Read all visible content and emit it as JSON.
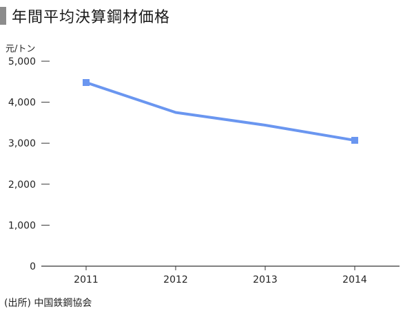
{
  "chart_data": {
    "type": "line",
    "title": "年間平均決算鋼材価格",
    "ylabel": "元/トン",
    "xlabel": "",
    "categories": [
      "2011",
      "2012",
      "2013",
      "2014"
    ],
    "series": [
      {
        "values": [
          4480,
          3750,
          3440,
          3070
        ],
        "color": "#6a96f0"
      }
    ],
    "ylim": [
      0,
      5000
    ],
    "yticks": [
      0,
      1000,
      2000,
      3000,
      4000,
      5000
    ],
    "ytick_labels": [
      "0",
      "1,000",
      "2,000",
      "3,000",
      "4,000",
      "5,000"
    ],
    "grid": false,
    "source": "(出所) 中国鉄鋼協会"
  }
}
